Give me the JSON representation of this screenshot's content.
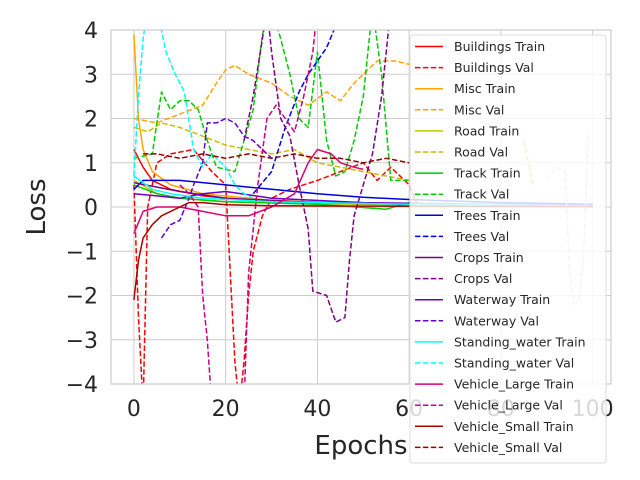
{
  "chart_data": {
    "type": "line",
    "title": "",
    "xlabel": "Epochs",
    "ylabel": "Loss",
    "xlim": [
      -5,
      104
    ],
    "ylim": [
      -4,
      4
    ],
    "x_ticks": [
      0,
      20,
      40,
      60,
      80,
      100
    ],
    "y_ticks": [
      -4,
      -3,
      -2,
      -1,
      0,
      1,
      2,
      3,
      4
    ],
    "x_tick_labels": [
      "0",
      "20",
      "40",
      "60",
      "80",
      "100"
    ],
    "y_tick_labels": [
      "−4",
      "−3",
      "−2",
      "−1",
      "0",
      "1",
      "2",
      "3",
      "4"
    ],
    "grid": true,
    "legend_position": "right",
    "series": [
      {
        "name": "Buildings Train",
        "color": "#ff0000",
        "dash": "solid",
        "points": [
          [
            0,
            1.3
          ],
          [
            2,
            0.9
          ],
          [
            4,
            0.6
          ],
          [
            8,
            0.4
          ],
          [
            15,
            0.25
          ],
          [
            25,
            0.15
          ],
          [
            40,
            0.1
          ],
          [
            60,
            0.06
          ],
          [
            80,
            0.04
          ],
          [
            100,
            0.03
          ]
        ]
      },
      {
        "name": "Buildings Val",
        "color": "#ff0000",
        "dash": "dashed",
        "points": [
          [
            0,
            0.5
          ],
          [
            1,
            -2.5
          ],
          [
            2,
            -4.5
          ],
          [
            3,
            0.0
          ],
          [
            5,
            1.0
          ],
          [
            8,
            1.2
          ],
          [
            13,
            1.3
          ],
          [
            17,
            0.8
          ],
          [
            20,
            0.5
          ],
          [
            22,
            -3.5
          ],
          [
            23,
            -4.5
          ],
          [
            24,
            -3.5
          ],
          [
            25,
            -2.0
          ],
          [
            26,
            -1.0
          ],
          [
            28,
            -0.2
          ],
          [
            30,
            0.2
          ],
          [
            34,
            0.4
          ],
          [
            40,
            0.6
          ],
          [
            45,
            0.8
          ],
          [
            50,
            1.0
          ],
          [
            53,
            0.6
          ],
          [
            56,
            0.9
          ],
          [
            60,
            0.5
          ],
          [
            62,
            0.0
          ]
        ]
      },
      {
        "name": "Misc Train",
        "color": "#ffa500",
        "dash": "solid",
        "points": [
          [
            0,
            3.9
          ],
          [
            1,
            2.0
          ],
          [
            2,
            1.3
          ],
          [
            4,
            0.8
          ],
          [
            8,
            0.5
          ],
          [
            15,
            0.3
          ],
          [
            30,
            0.15
          ],
          [
            50,
            0.08
          ],
          [
            70,
            0.05
          ],
          [
            100,
            0.03
          ]
        ]
      },
      {
        "name": "Misc Val",
        "color": "#ffa500",
        "dash": "dashed",
        "points": [
          [
            0,
            2.0
          ],
          [
            5,
            1.9
          ],
          [
            10,
            2.1
          ],
          [
            15,
            2.3
          ],
          [
            18,
            2.8
          ],
          [
            20,
            3.1
          ],
          [
            22,
            3.2
          ],
          [
            25,
            3.0
          ],
          [
            30,
            2.8
          ],
          [
            34,
            2.5
          ],
          [
            38,
            2.3
          ],
          [
            42,
            2.6
          ],
          [
            45,
            2.4
          ],
          [
            48,
            2.8
          ],
          [
            50,
            3.0
          ],
          [
            53,
            3.3
          ],
          [
            57,
            3.3
          ],
          [
            61,
            3.2
          ]
        ]
      },
      {
        "name": "Road Train",
        "color": "#bbcc00",
        "dash": "solid",
        "points": [
          [
            0,
            0.6
          ],
          [
            5,
            0.3
          ],
          [
            10,
            0.2
          ],
          [
            20,
            0.12
          ],
          [
            40,
            0.07
          ],
          [
            70,
            0.04
          ],
          [
            100,
            0.02
          ]
        ]
      },
      {
        "name": "Road Val",
        "color": "#ccbb00",
        "dash": "dashed",
        "points": [
          [
            0,
            1.8
          ],
          [
            3,
            1.7
          ],
          [
            6,
            1.9
          ],
          [
            10,
            1.8
          ],
          [
            15,
            1.6
          ],
          [
            20,
            1.4
          ],
          [
            25,
            1.3
          ],
          [
            30,
            1.2
          ],
          [
            35,
            1.3
          ],
          [
            40,
            1.0
          ],
          [
            45,
            0.9
          ],
          [
            50,
            0.8
          ],
          [
            55,
            0.7
          ],
          [
            60,
            0.6
          ]
        ]
      },
      {
        "name": "Track Train",
        "color": "#00cc00",
        "dash": "solid",
        "points": [
          [
            0,
            0.5
          ],
          [
            5,
            0.3
          ],
          [
            10,
            0.2
          ],
          [
            20,
            0.12
          ],
          [
            40,
            0.06
          ],
          [
            55,
            -0.05
          ],
          [
            60,
            0.1
          ],
          [
            70,
            0.05
          ],
          [
            100,
            0.02
          ]
        ]
      },
      {
        "name": "Track Val",
        "color": "#00cc00",
        "dash": "dashed",
        "points": [
          [
            0,
            1.1
          ],
          [
            4,
            1.2
          ],
          [
            6,
            2.6
          ],
          [
            8,
            2.2
          ],
          [
            10,
            2.4
          ],
          [
            12,
            2.4
          ],
          [
            14,
            2.2
          ],
          [
            16,
            1.5
          ],
          [
            18,
            0.9
          ],
          [
            22,
            0.8
          ],
          [
            24,
            1.5
          ],
          [
            26,
            2.2
          ],
          [
            28,
            3.9
          ],
          [
            30,
            4.5
          ],
          [
            32,
            3.8
          ],
          [
            34,
            3.0
          ],
          [
            36,
            2.0
          ],
          [
            38,
            1.8
          ],
          [
            40,
            3.5
          ],
          [
            42,
            1.5
          ],
          [
            44,
            0.7
          ],
          [
            46,
            0.8
          ],
          [
            48,
            1.5
          ],
          [
            50,
            2.5
          ],
          [
            52,
            4.5
          ],
          [
            54,
            3.0
          ],
          [
            56,
            0.6
          ],
          [
            60,
            0.6
          ]
        ]
      },
      {
        "name": "Trees Train",
        "color": "#0000dd",
        "dash": "solid",
        "points": [
          [
            0,
            0.4
          ],
          [
            2,
            0.6
          ],
          [
            10,
            0.6
          ],
          [
            20,
            0.5
          ],
          [
            30,
            0.4
          ],
          [
            40,
            0.3
          ],
          [
            50,
            0.22
          ],
          [
            60,
            0.17
          ],
          [
            80,
            0.1
          ],
          [
            100,
            0.06
          ]
        ]
      },
      {
        "name": "Trees Val",
        "color": "#0000ee",
        "dash": "dashed",
        "points": [
          [
            26,
            0.3
          ],
          [
            30,
            0.8
          ],
          [
            33,
            1.8
          ],
          [
            36,
            2.6
          ],
          [
            38,
            3.0
          ],
          [
            40,
            3.3
          ],
          [
            42,
            3.6
          ],
          [
            44,
            4.1
          ],
          [
            46,
            4.5
          ]
        ]
      },
      {
        "name": "Crops Train",
        "color": "#800080",
        "dash": "solid",
        "points": [
          [
            0,
            0.55
          ],
          [
            5,
            0.45
          ],
          [
            10,
            0.35
          ],
          [
            20,
            0.2
          ],
          [
            40,
            0.1
          ],
          [
            60,
            0.06
          ],
          [
            100,
            0.03
          ]
        ]
      },
      {
        "name": "Crops Val",
        "color": "#800080",
        "dash": "dashed",
        "points": [
          [
            24,
            1.5
          ],
          [
            26,
            2.5
          ],
          [
            28,
            3.8
          ],
          [
            29,
            4.5
          ],
          [
            30,
            3.5
          ],
          [
            32,
            2.0
          ],
          [
            34,
            1.6
          ],
          [
            36,
            0.5
          ],
          [
            38,
            -0.5
          ],
          [
            39,
            -1.9
          ],
          [
            42,
            -2.0
          ],
          [
            43,
            -2.3
          ],
          [
            44,
            -2.6
          ],
          [
            46,
            -2.5
          ],
          [
            47,
            -1.2
          ],
          [
            48,
            -0.2
          ],
          [
            50,
            0.5
          ],
          [
            52,
            1.2
          ],
          [
            54,
            2.5
          ],
          [
            56,
            4.5
          ]
        ]
      },
      {
        "name": "Waterway Train",
        "color": "#6600cc",
        "dash": "solid",
        "points": [
          [
            0,
            0.3
          ],
          [
            5,
            0.25
          ],
          [
            10,
            0.2
          ],
          [
            15,
            0.3
          ],
          [
            20,
            0.35
          ],
          [
            30,
            0.2
          ],
          [
            50,
            0.1
          ],
          [
            75,
            0.06
          ],
          [
            100,
            0.04
          ]
        ]
      },
      {
        "name": "Waterway Val",
        "color": "#6600cc",
        "dash": "dashed",
        "points": [
          [
            6,
            -0.7
          ],
          [
            8,
            -0.4
          ],
          [
            10,
            -0.3
          ],
          [
            12,
            0.2
          ],
          [
            13,
            0.5
          ],
          [
            15,
            1.0
          ],
          [
            16,
            1.9
          ],
          [
            18,
            1.9
          ],
          [
            20,
            2.0
          ],
          [
            22,
            1.9
          ],
          [
            24,
            1.6
          ],
          [
            26,
            1.5
          ],
          [
            28,
            1.3
          ],
          [
            30,
            1.1
          ]
        ]
      },
      {
        "name": "Standing_water Train",
        "color": "#00ffff",
        "dash": "solid",
        "points": [
          [
            0,
            0.7
          ],
          [
            4,
            0.4
          ],
          [
            8,
            0.3
          ],
          [
            15,
            0.2
          ],
          [
            30,
            0.12
          ],
          [
            60,
            0.06
          ],
          [
            100,
            0.03
          ]
        ]
      },
      {
        "name": "Standing_water Val",
        "color": "#00ffff",
        "dash": "dashed",
        "points": [
          [
            0,
            0.7
          ],
          [
            1,
            2.5
          ],
          [
            2,
            3.8
          ],
          [
            3,
            4.5
          ],
          [
            5,
            4.5
          ],
          [
            7,
            3.5
          ],
          [
            9,
            3.0
          ],
          [
            11,
            2.6
          ],
          [
            13,
            1.3
          ],
          [
            15,
            0.9
          ],
          [
            17,
            1.2
          ],
          [
            20,
            0.9
          ],
          [
            22,
            0.5
          ],
          [
            24,
            0.3
          ],
          [
            26,
            0.2
          ]
        ]
      },
      {
        "name": "Vehicle_Large Train",
        "color": "#dd0077",
        "dash": "solid",
        "points": [
          [
            0,
            -0.6
          ],
          [
            2,
            -0.1
          ],
          [
            5,
            0.0
          ],
          [
            10,
            0.0
          ],
          [
            15,
            -0.1
          ],
          [
            20,
            -0.2
          ],
          [
            25,
            -0.2
          ],
          [
            30,
            0.0
          ],
          [
            35,
            0.3
          ],
          [
            38,
            1.0
          ],
          [
            40,
            1.3
          ],
          [
            43,
            1.2
          ],
          [
            45,
            1.0
          ],
          [
            48,
            0.9
          ],
          [
            50,
            0.85
          ]
        ]
      },
      {
        "name": "Vehicle_Large Val",
        "color": "#cc0088",
        "dash": "dashed",
        "points": [
          [
            10,
            0.5
          ],
          [
            12,
            0.3
          ],
          [
            14,
            0.0
          ],
          [
            15,
            -2.0
          ],
          [
            16,
            -3.0
          ],
          [
            17,
            -4.5
          ],
          [
            24,
            -4.5
          ],
          [
            25,
            -1.5
          ],
          [
            27,
            0.5
          ],
          [
            29,
            2.0
          ],
          [
            31,
            2.3
          ],
          [
            33,
            2.0
          ],
          [
            35,
            1.7
          ],
          [
            37,
            2.5
          ],
          [
            39,
            3.5
          ],
          [
            40,
            4.5
          ]
        ]
      },
      {
        "name": "Vehicle_Small Train",
        "color": "#aa0000",
        "dash": "solid",
        "points": [
          [
            0,
            -2.1
          ],
          [
            1,
            -1.2
          ],
          [
            2,
            -0.7
          ],
          [
            4,
            -0.4
          ],
          [
            6,
            -0.2
          ],
          [
            8,
            -0.1
          ],
          [
            10,
            0.0
          ],
          [
            12,
            0.1
          ],
          [
            15,
            0.1
          ],
          [
            20,
            0.05
          ],
          [
            30,
            0.03
          ],
          [
            50,
            0.02
          ],
          [
            100,
            0.01
          ]
        ]
      },
      {
        "name": "Vehicle_Small Val",
        "color": "#990000",
        "dash": "dashed",
        "points": [
          [
            2,
            1.2
          ],
          [
            5,
            1.2
          ],
          [
            10,
            1.1
          ],
          [
            15,
            1.2
          ],
          [
            20,
            1.1
          ],
          [
            25,
            1.2
          ],
          [
            30,
            1.1
          ],
          [
            35,
            1.2
          ],
          [
            40,
            1.1
          ],
          [
            45,
            1.1
          ],
          [
            50,
            1.0
          ],
          [
            55,
            1.1
          ],
          [
            60,
            1.0
          ]
        ]
      }
    ],
    "legend_peek": [
      {
        "color": "#ffa500",
        "dash": "dashed",
        "points": [
          [
            85,
            1.5
          ],
          [
            86,
            1.0
          ],
          [
            87,
            0.5
          ]
        ]
      },
      {
        "color": "#ccbbdd",
        "dash": "dashed",
        "points": [
          [
            90,
            0.6
          ],
          [
            92,
            0.9
          ],
          [
            94,
            0.8
          ],
          [
            95,
            -1.5
          ],
          [
            96,
            -2.2
          ],
          [
            97,
            -2.1
          ],
          [
            98,
            -1.2
          ],
          [
            99,
            1.7
          ]
        ]
      }
    ]
  }
}
